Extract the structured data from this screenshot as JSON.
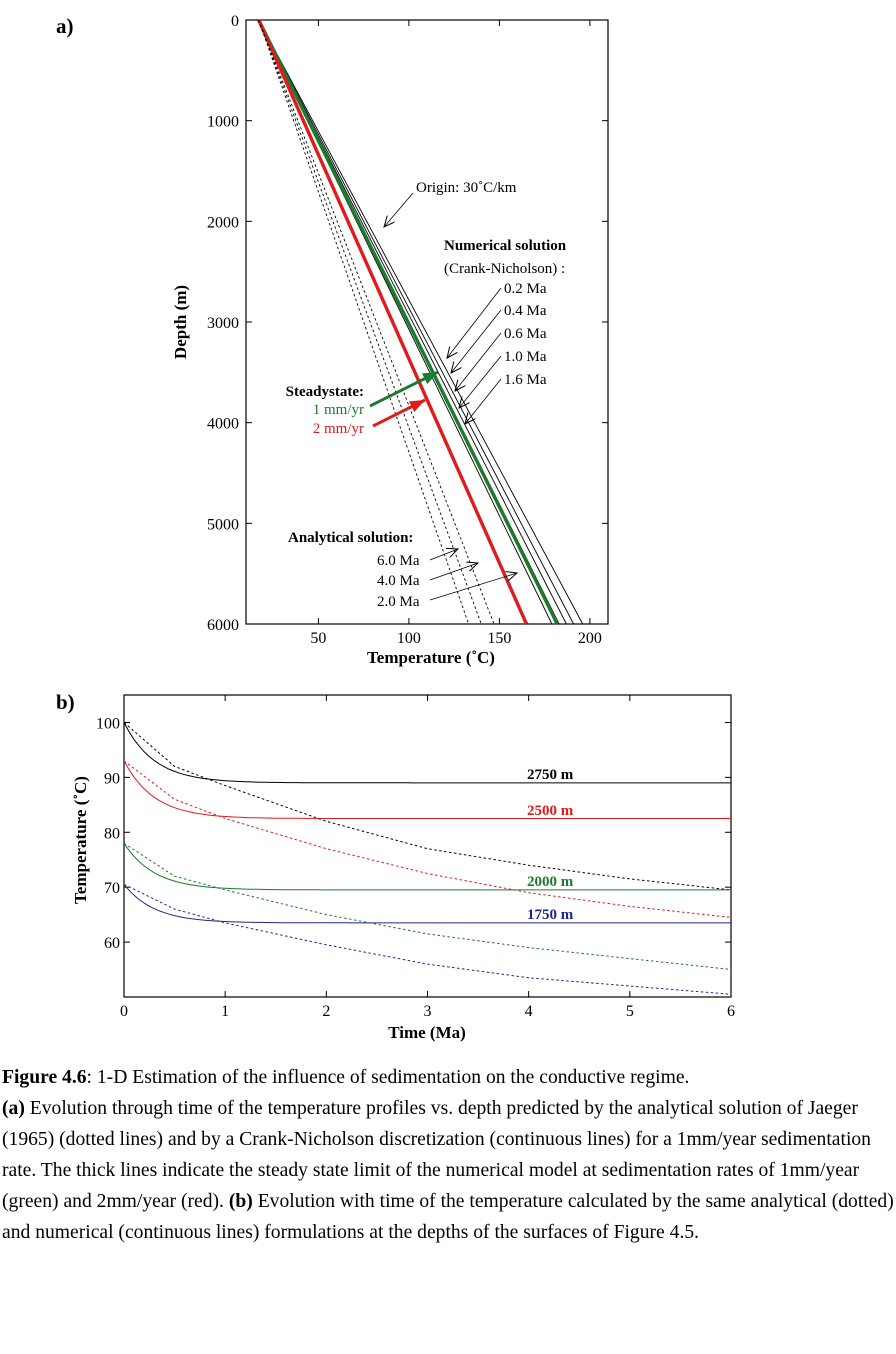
{
  "colors": {
    "black": "#000000",
    "green": "#1a7a2e",
    "red": "#e01b1b",
    "blue": "#23238c"
  },
  "chart_data": [
    {
      "type": "line",
      "panel_label": "a)",
      "title": "",
      "xlabel": "Temperature (˚C)",
      "ylabel": "Depth (m)",
      "xlim": [
        10,
        210
      ],
      "ylim": [
        0,
        6000
      ],
      "y_inverted": true,
      "x_ticks": [
        {
          "value": 50,
          "label": "50"
        },
        {
          "value": 100,
          "label": "100"
        },
        {
          "value": 150,
          "label": "150"
        },
        {
          "value": 200,
          "label": "200"
        }
      ],
      "y_ticks": [
        {
          "value": 0,
          "label": "0"
        },
        {
          "value": 1000,
          "label": "1000"
        },
        {
          "value": 2000,
          "label": "2000"
        },
        {
          "value": 3000,
          "label": "3000"
        },
        {
          "value": 4000,
          "label": "4000"
        },
        {
          "value": 5000,
          "label": "5000"
        },
        {
          "value": 6000,
          "label": "6000"
        }
      ],
      "grid": false,
      "series": [
        {
          "kind": "numerical",
          "style": "thin-solid",
          "color": "black",
          "points": [
            [
              17,
              0
            ],
            [
              196,
              6000
            ]
          ]
        },
        {
          "kind": "numerical",
          "style": "thin-solid",
          "color": "black",
          "points": [
            [
              17,
              0
            ],
            [
              191,
              6000
            ]
          ]
        },
        {
          "kind": "numerical",
          "style": "thin-solid",
          "color": "black",
          "points": [
            [
              17,
              0
            ],
            [
              187,
              6000
            ]
          ]
        },
        {
          "kind": "numerical",
          "style": "thin-solid",
          "color": "black",
          "points": [
            [
              17,
              0
            ],
            [
              183,
              6000
            ]
          ]
        },
        {
          "kind": "numerical",
          "style": "thin-solid",
          "color": "black",
          "points": [
            [
              17,
              0
            ],
            [
              179,
              6000
            ]
          ]
        },
        {
          "kind": "steady-state 1 mm/yr",
          "style": "thick",
          "color": "green",
          "points": [
            [
              17,
              0
            ],
            [
              182,
              6000
            ]
          ]
        },
        {
          "kind": "steady-state 2 mm/yr",
          "style": "thick",
          "color": "red",
          "points": [
            [
              17,
              0
            ],
            [
              165,
              6000
            ]
          ]
        },
        {
          "kind": "analytical",
          "style": "dotted",
          "color": "black",
          "points": [
            [
              17,
              0
            ],
            [
              147,
              6000
            ]
          ]
        },
        {
          "kind": "analytical",
          "style": "dotted",
          "color": "black",
          "points": [
            [
              17,
              0
            ],
            [
              140,
              6000
            ]
          ]
        },
        {
          "kind": "analytical",
          "style": "dotted",
          "color": "black",
          "points": [
            [
              17,
              0
            ],
            [
              133,
              6000
            ]
          ]
        }
      ],
      "annotations": {
        "origin": "Origin: 30˚C/km",
        "numerical_title": "Numerical solution",
        "numerical_subtitle": "(Crank-Nicholson) :",
        "numerical_times": [
          "0.2 Ma",
          "0.4 Ma",
          "0.6 Ma",
          "1.0 Ma",
          "1.6 Ma"
        ],
        "steady_title": "Steadystate:",
        "steady_1": "1  mm/yr",
        "steady_2": "2  mm/yr",
        "analytical_title": "Analytical solution:",
        "analytical_times": [
          "6.0 Ma",
          "4.0 Ma",
          "2.0 Ma"
        ]
      }
    },
    {
      "type": "line",
      "panel_label": "b)",
      "title": "",
      "xlabel": "Time (Ma)",
      "ylabel": "Temperature (˚C)",
      "xlim": [
        0,
        6
      ],
      "ylim": [
        50,
        105
      ],
      "x_ticks": [
        {
          "value": 0,
          "label": "0"
        },
        {
          "value": 1,
          "label": "1"
        },
        {
          "value": 2,
          "label": "2"
        },
        {
          "value": 3,
          "label": "3"
        },
        {
          "value": 4,
          "label": "4"
        },
        {
          "value": 5,
          "label": "5"
        },
        {
          "value": 6,
          "label": "6"
        }
      ],
      "y_ticks": [
        {
          "value": 60,
          "label": "60"
        },
        {
          "value": 70,
          "label": "70"
        },
        {
          "value": 80,
          "label": "80"
        },
        {
          "value": 90,
          "label": "90"
        },
        {
          "value": 100,
          "label": "100"
        }
      ],
      "grid": false,
      "series": [
        {
          "name": "2750 m",
          "color": "black",
          "numerical": {
            "start": 100,
            "end": 89,
            "tau": 0.3
          },
          "analytical": [
            [
              0,
              100
            ],
            [
              0.5,
              92
            ],
            [
              1,
              88.5
            ],
            [
              2,
              82
            ],
            [
              3,
              77
            ],
            [
              4,
              74
            ],
            [
              5,
              71.5
            ],
            [
              6,
              69.5
            ]
          ]
        },
        {
          "name": "2500 m",
          "color": "red",
          "numerical": {
            "start": 93,
            "end": 82.5,
            "tau": 0.3
          },
          "analytical": [
            [
              0,
              93
            ],
            [
              0.5,
              86
            ],
            [
              1,
              82.5
            ],
            [
              2,
              77
            ],
            [
              3,
              72.5
            ],
            [
              4,
              69
            ],
            [
              5,
              66.5
            ],
            [
              6,
              64.5
            ]
          ]
        },
        {
          "name": "2000 m",
          "color": "green",
          "numerical": {
            "start": 78,
            "end": 69.5,
            "tau": 0.3
          },
          "analytical": [
            [
              0,
              78
            ],
            [
              0.5,
              72
            ],
            [
              1,
              69.5
            ],
            [
              2,
              65
            ],
            [
              3,
              61.5
            ],
            [
              4,
              59
            ],
            [
              5,
              57
            ],
            [
              6,
              55
            ]
          ]
        },
        {
          "name": "1750 m",
          "color": "blue",
          "numerical": {
            "start": 70.5,
            "end": 63.5,
            "tau": 0.3
          },
          "analytical": [
            [
              0,
              70.5
            ],
            [
              0.5,
              66
            ],
            [
              1,
              63.5
            ],
            [
              2,
              59.5
            ],
            [
              3,
              56
            ],
            [
              4,
              53.5
            ],
            [
              5,
              52
            ],
            [
              6,
              50.5
            ]
          ]
        }
      ]
    }
  ],
  "caption": {
    "label": "Figure 4.6",
    "text1": ": 1-D Estimation of the influence of sedimentation on the conductive regime.",
    "a_label": "(a)",
    "text2": " Evolution through time of the temperature profiles vs. depth predicted by the analytical solution of  Jaeger (1965) (dotted lines) and by a Crank-Nicholson discretization (continuous lines) for a 1mm/year sedimentation rate. The thick lines indicate the steady state limit of the numerical  model at sedimentation rates of 1mm/year (green) and 2mm/year (red). ",
    "b_label": "(b)",
    "text3": " Evolution with time of the temperature calculated by the same analytical (dotted) and numerical (continuous lines) formulations at the depths of the surfaces of Figure 4.5."
  }
}
